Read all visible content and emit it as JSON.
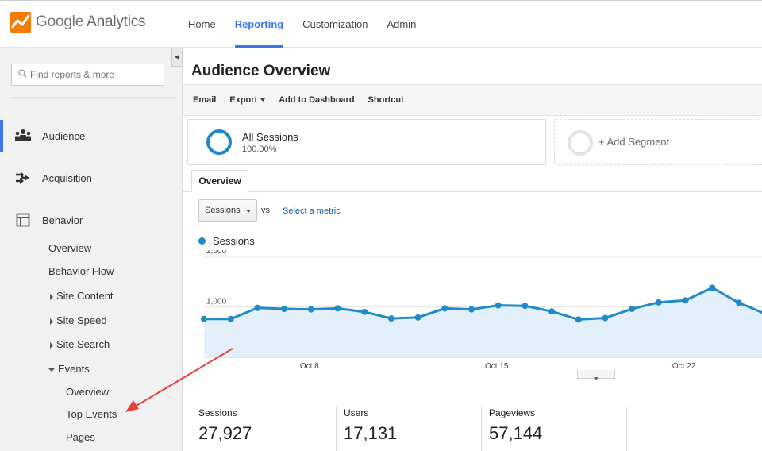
{
  "app": {
    "logo_word1": "Google",
    "logo_word2": "Analytics"
  },
  "topnav": {
    "items": [
      {
        "label": "Home",
        "active": false
      },
      {
        "label": "Reporting",
        "active": true
      },
      {
        "label": "Customization",
        "active": false
      },
      {
        "label": "Admin",
        "active": false
      }
    ]
  },
  "sidebar": {
    "search_placeholder": "Find reports & more",
    "sections": [
      {
        "label": "Audience",
        "icon": "audience-icon",
        "active": true
      },
      {
        "label": "Acquisition",
        "icon": "acquisition-icon",
        "active": false
      },
      {
        "label": "Behavior",
        "icon": "behavior-icon",
        "active": false
      }
    ],
    "behavior_items": [
      {
        "label": "Overview"
      },
      {
        "label": "Behavior Flow"
      },
      {
        "label": "Site Content"
      },
      {
        "label": "Site Speed"
      },
      {
        "label": "Site Search"
      },
      {
        "label": "Events"
      }
    ],
    "events_items": [
      {
        "label": "Overview"
      },
      {
        "label": "Top Events"
      },
      {
        "label": "Pages"
      }
    ]
  },
  "main": {
    "title": "Audience Overview",
    "toolbar": {
      "email": "Email",
      "export": "Export",
      "add_dashboard": "Add to Dashboard",
      "shortcut": "Shortcut"
    },
    "segment": {
      "name": "All Sessions",
      "percent": "100.00%"
    },
    "add_segment": "+ Add Segment",
    "tab": "Overview",
    "metric_select": "Sessions",
    "vs": "vs.",
    "select_metric": "Select a metric",
    "legend": "Sessions",
    "stats": [
      {
        "label": "Sessions",
        "value": "27,927"
      },
      {
        "label": "Users",
        "value": "17,131"
      },
      {
        "label": "Pageviews",
        "value": "57,144"
      }
    ]
  },
  "colors": {
    "accent": "#3b78e7",
    "series": "#1f8ac7",
    "annotation": "#e8403a"
  },
  "chart_data": {
    "type": "area",
    "series": [
      {
        "name": "Sessions",
        "values": [
          760,
          760,
          980,
          960,
          950,
          970,
          900,
          770,
          790,
          970,
          950,
          1030,
          1020,
          910,
          750,
          780,
          960,
          1090,
          1130,
          1380,
          1080,
          860
        ]
      }
    ],
    "x_ticks": [
      "Oct 8",
      "Oct 15",
      "Oct 22"
    ],
    "y_ticks": [
      "2,000",
      "1,000"
    ],
    "ylim": [
      0,
      2000
    ],
    "grid": true
  }
}
